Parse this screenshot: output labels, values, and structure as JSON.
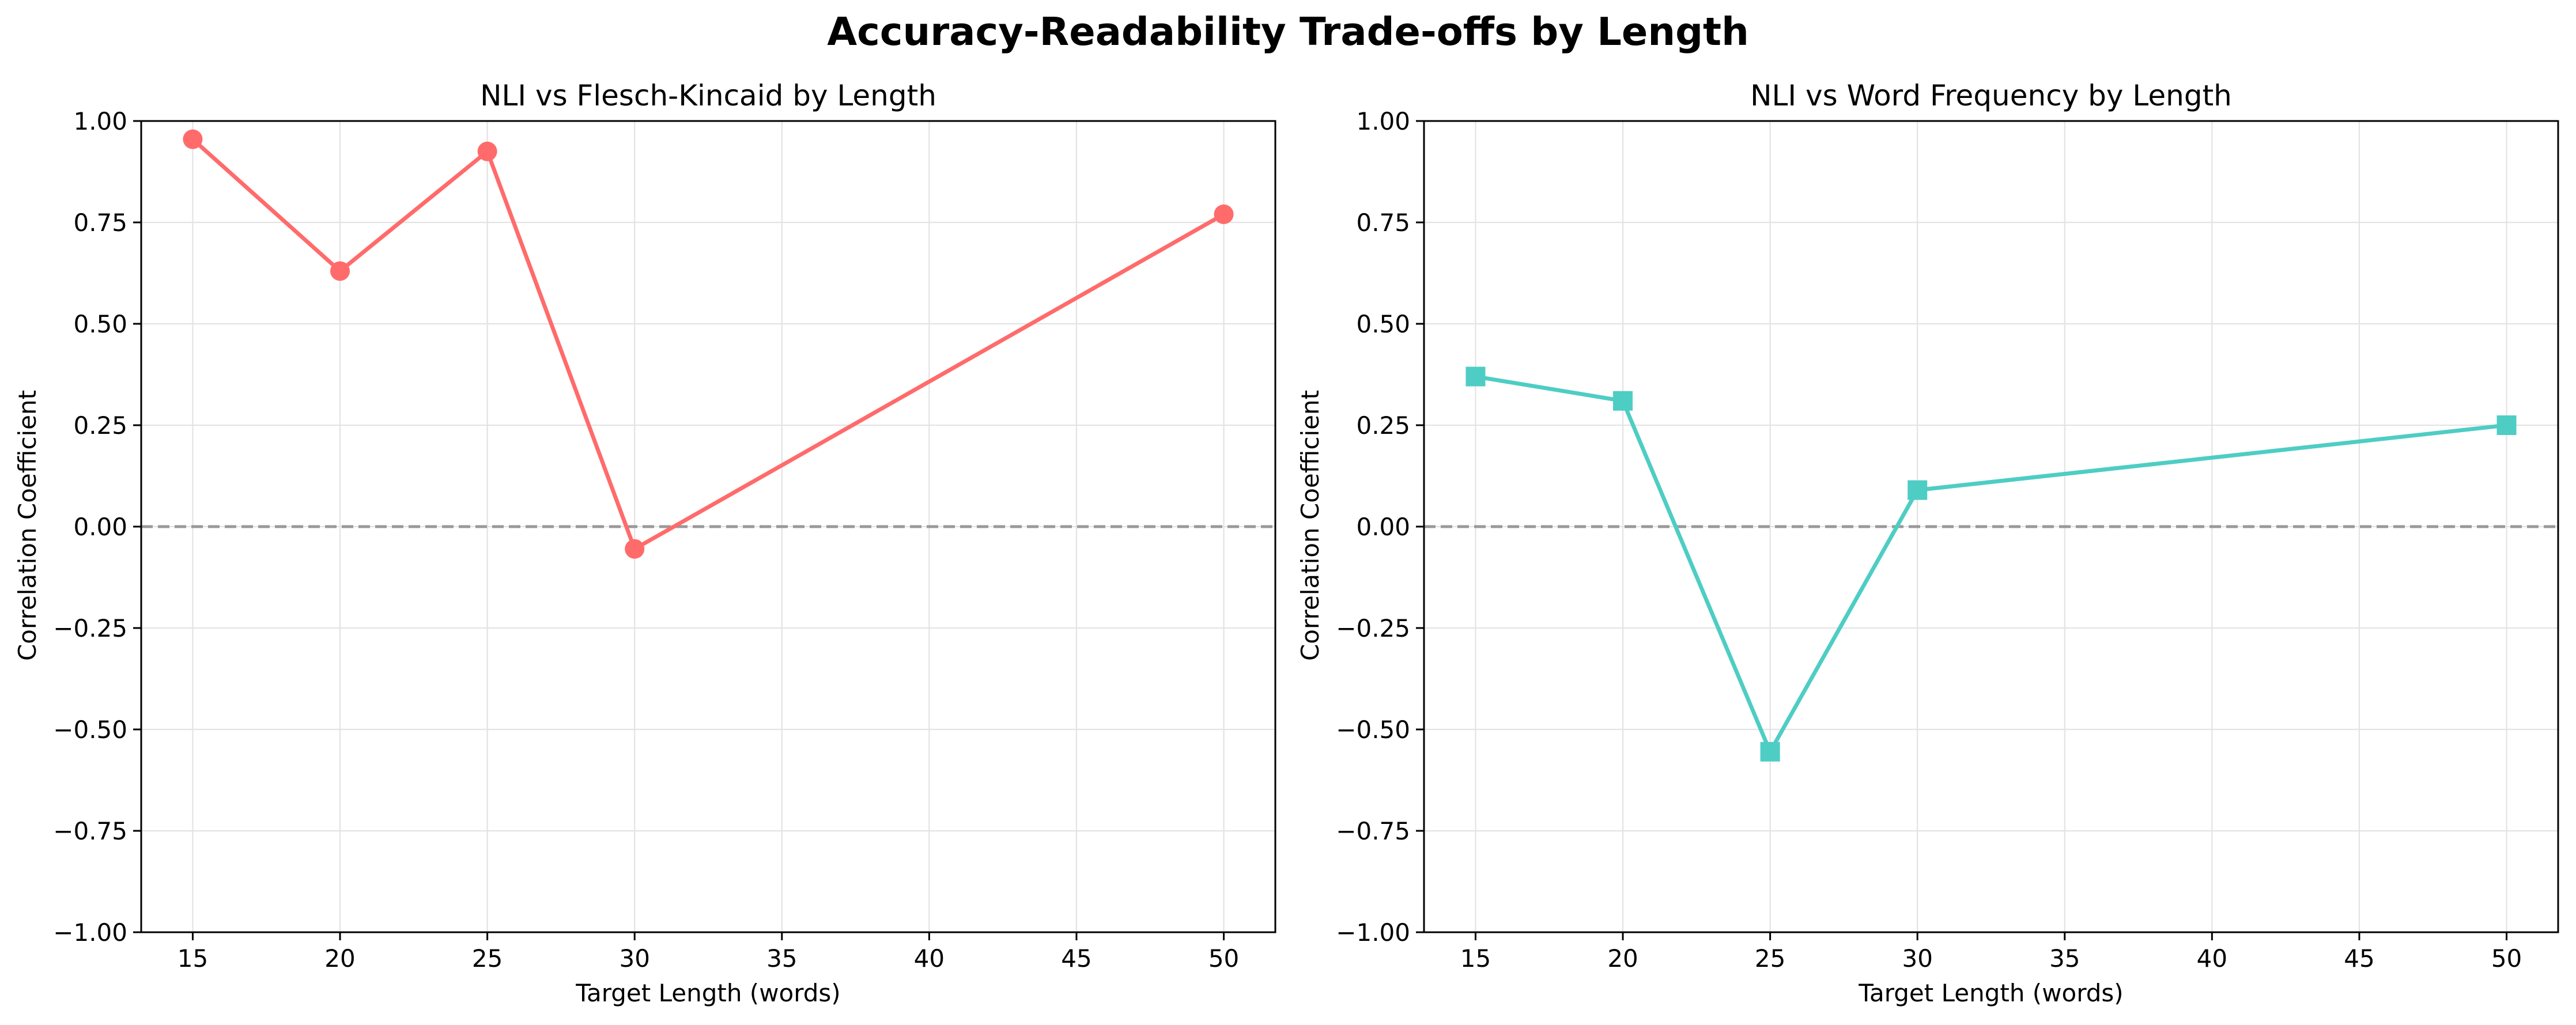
{
  "figure": {
    "title": "Accuracy-Readability Trade-offs by Length"
  },
  "chart_data": [
    {
      "type": "line",
      "title": "NLI vs Flesch-Kincaid by Length",
      "xlabel": "Target Length (words)",
      "ylabel": "Correlation Coefficient",
      "xlim": [
        13.25,
        51.75
      ],
      "ylim": [
        -1.0,
        1.0
      ],
      "xticks": [
        15,
        20,
        25,
        30,
        35,
        40,
        45,
        50
      ],
      "yticks": [
        -1.0,
        -0.75,
        -0.5,
        -0.25,
        0.0,
        0.25,
        0.5,
        0.75,
        1.0
      ],
      "ytick_labels": [
        "−1.00",
        "−0.75",
        "−0.50",
        "−0.25",
        "0.00",
        "0.25",
        "0.50",
        "0.75",
        "1.00"
      ],
      "grid": true,
      "reference_line": {
        "y": 0.0,
        "style": "dashed",
        "color": "#999999"
      },
      "series": [
        {
          "x": [
            15,
            20,
            25,
            30,
            50
          ],
          "values": [
            0.955,
            0.63,
            0.925,
            -0.055,
            0.77
          ],
          "color": "#ff6b6b",
          "marker": "circle"
        }
      ]
    },
    {
      "type": "line",
      "title": "NLI vs Word Frequency by Length",
      "xlabel": "Target Length (words)",
      "ylabel": "Correlation Coefficient",
      "xlim": [
        13.25,
        51.75
      ],
      "ylim": [
        -1.0,
        1.0
      ],
      "xticks": [
        15,
        20,
        25,
        30,
        35,
        40,
        45,
        50
      ],
      "yticks": [
        -1.0,
        -0.75,
        -0.5,
        -0.25,
        0.0,
        0.25,
        0.5,
        0.75,
        1.0
      ],
      "ytick_labels": [
        "−1.00",
        "−0.75",
        "−0.50",
        "−0.25",
        "0.00",
        "0.25",
        "0.50",
        "0.75",
        "1.00"
      ],
      "grid": true,
      "reference_line": {
        "y": 0.0,
        "style": "dashed",
        "color": "#999999"
      },
      "series": [
        {
          "x": [
            15,
            20,
            25,
            30,
            50
          ],
          "values": [
            0.37,
            0.31,
            -0.555,
            0.09,
            0.25
          ],
          "color": "#4ecdc4",
          "marker": "square"
        }
      ]
    }
  ]
}
